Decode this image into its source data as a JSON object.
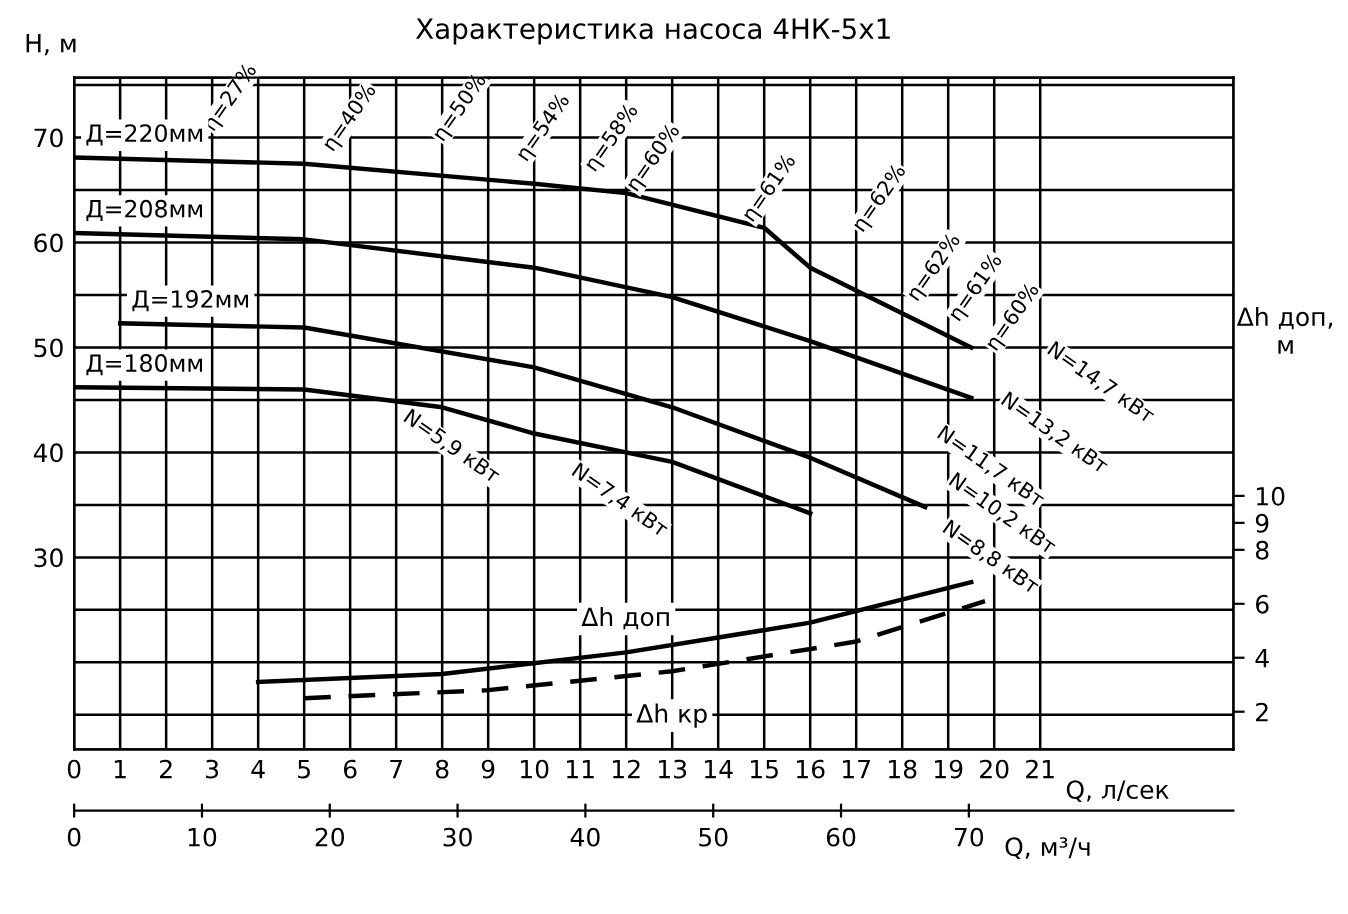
{
  "chart_data": {
    "type": "line",
    "title": "Характеристика насоса 4НК-5х1",
    "xlabel": "Q, л/сек",
    "ylabel": "H, м",
    "y2label": "Δh доп, м",
    "x2label": "Q, м³/ч",
    "xlim": [
      0,
      25.2
    ],
    "xticks": [
      0,
      1,
      2,
      3,
      4,
      5,
      6,
      7,
      8,
      9,
      10,
      11,
      12,
      13,
      14,
      15,
      16,
      17,
      18,
      19,
      20,
      21
    ],
    "x2lim": [
      0,
      90.7
    ],
    "x2ticks": [
      0,
      10,
      20,
      30,
      40,
      50,
      60,
      70
    ],
    "ylim": [
      11.7,
      75.7
    ],
    "yticks": [
      {
        "value": 15,
        "label": null
      },
      {
        "value": 20,
        "label": null
      },
      {
        "value": 25,
        "label": null
      },
      30,
      {
        "value": 35,
        "label": null
      },
      40,
      {
        "value": 45,
        "label": null
      },
      50,
      {
        "value": 55,
        "label": null
      },
      60,
      {
        "value": 65,
        "label": null
      },
      70,
      {
        "value": 75,
        "label": null
      }
    ],
    "y2lim": [
      0.6,
      25.5
    ],
    "y2ticks": [
      2,
      4,
      6,
      8,
      9,
      10
    ],
    "grid": true,
    "legend": false,
    "marker": "none",
    "series": [
      {
        "name": "Д=220мм",
        "color": "#000000",
        "line_style": "solid",
        "x": [
          0,
          5,
          10,
          12,
          15,
          16,
          19.5
        ],
        "values": [
          68.1,
          67.5,
          65.6,
          64.7,
          61.4,
          57.6,
          50.0
        ]
      },
      {
        "name": "Д=208мм",
        "color": "#000000",
        "line_style": "solid",
        "x": [
          0,
          5,
          10,
          13,
          16,
          19.5
        ],
        "values": [
          60.9,
          60.3,
          57.6,
          54.8,
          50.6,
          45.2
        ]
      },
      {
        "name": "Д=192мм",
        "color": "#000000",
        "line_style": "solid",
        "x": [
          1,
          5,
          10,
          13,
          16,
          18.5
        ],
        "values": [
          52.3,
          51.9,
          48.1,
          44.3,
          39.5,
          34.8
        ]
      },
      {
        "name": "Д=180мм",
        "color": "#000000",
        "line_style": "solid",
        "x": [
          0,
          5,
          8,
          10,
          13,
          16
        ],
        "values": [
          46.2,
          46.0,
          44.3,
          41.8,
          39.1,
          34.2
        ]
      },
      {
        "name": "Δh доп",
        "color": "#000000",
        "axis": "y2",
        "line_style": "solid",
        "x": [
          4,
          8,
          12,
          16,
          19.5
        ],
        "values": [
          3.1,
          3.4,
          4.2,
          5.3,
          6.8
        ]
      },
      {
        "name": "Δh кр",
        "color": "#000000",
        "axis": "y2",
        "line_style": "dashed",
        "x": [
          5,
          9,
          13,
          17,
          19.8
        ],
        "values": [
          2.5,
          2.8,
          3.5,
          4.6,
          6.1
        ]
      }
    ],
    "annotations": [
      "η=27%",
      "η=40%",
      "η=50%",
      "η=54%",
      "η=58%",
      "η=60%",
      "η=61%",
      "η=62%",
      "η=62%",
      "η=61%",
      "η=60%",
      "N=5,9 кВт",
      "N=7,4 кВт",
      "N=14,7 кВт",
      "N=13,2 кВт",
      "N=11,7 кВт",
      "N=10,2 кВт",
      "N=8,8 кВт"
    ]
  }
}
